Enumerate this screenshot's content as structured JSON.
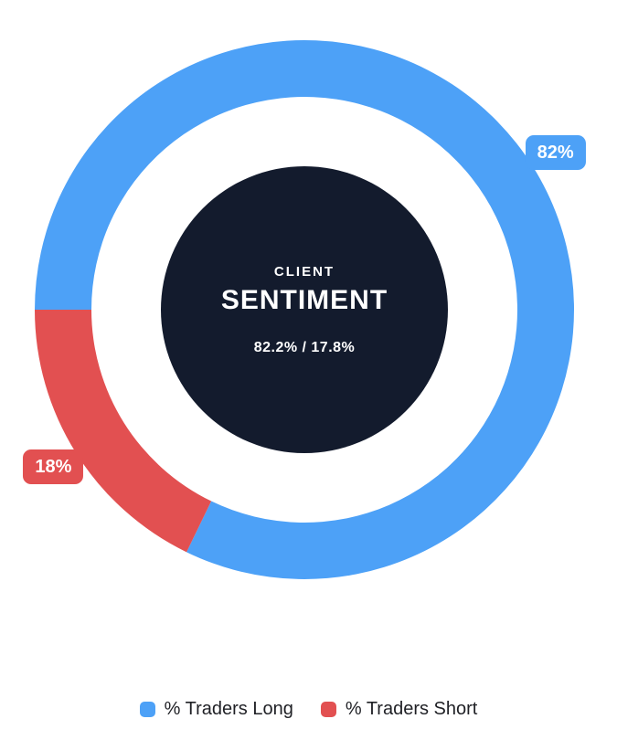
{
  "chart_data": {
    "type": "pie",
    "subtype": "doughnut",
    "title": "Client Sentiment",
    "categories": [
      "% Traders Long",
      "% Traders Short"
    ],
    "values": [
      82.2,
      17.8
    ],
    "colors": [
      "#4DA1F7",
      "#E25051"
    ],
    "slice_labels": [
      "82%",
      "18%"
    ],
    "start_angle_deg": 270,
    "direction": "clockwise",
    "inner_radius_ratio": 0.79,
    "legend_position": "bottom",
    "center_label": {
      "top": "CLIENT",
      "main": "SENTIMENT",
      "sub": "82.2% / 17.8%"
    }
  },
  "theme": {
    "background": "#FFFFFF",
    "center_circle": "#131B2D",
    "center_text": "#FFFFFF",
    "badge_text": "#FFFFFF",
    "legend_text": "#1F2025"
  }
}
